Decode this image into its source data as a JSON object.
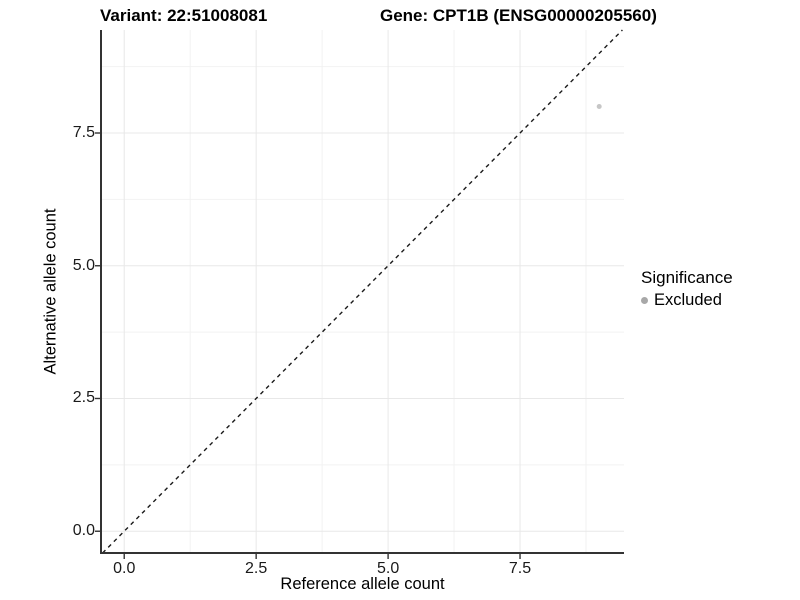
{
  "header": {
    "title_left": "Variant: 22:51008081",
    "title_right": "Gene: CPT1B (ENSG00000205560)"
  },
  "chart_data": {
    "type": "scatter",
    "title_left": "Variant: 22:51008081",
    "title_right": "Gene: CPT1B (ENSG00000205560)",
    "xlabel": "Reference allele count",
    "ylabel": "Alternative allele count",
    "xlim": [
      -0.44,
      9.47
    ],
    "ylim": [
      -0.41,
      9.44
    ],
    "x_ticks": [
      0.0,
      2.5,
      5.0,
      7.5
    ],
    "y_ticks": [
      0.0,
      2.5,
      5.0,
      7.5
    ],
    "x_tick_labels": [
      "0.0",
      "2.5",
      "5.0",
      "7.5"
    ],
    "y_tick_labels": [
      "0.0",
      "2.5",
      "5.0",
      "7.5"
    ],
    "x_minor_ticks": [
      1.25,
      3.75,
      6.25,
      8.75
    ],
    "y_minor_ticks": [
      1.25,
      3.75,
      6.25,
      8.75
    ],
    "grid": true,
    "reference_line": {
      "type": "abline",
      "slope": 1,
      "intercept": 0,
      "style": "dashed",
      "color": "#1a1a1a"
    },
    "series": [
      {
        "name": "Excluded",
        "color": "#c6c6c6",
        "point_radius": 2.5,
        "points": [
          {
            "x": 9,
            "y": 8
          }
        ]
      }
    ],
    "legend": {
      "title": "Significance",
      "position": "right",
      "entries": [
        {
          "label": "Excluded",
          "color": "#a8a8a8"
        }
      ]
    }
  },
  "colors": {
    "background": "#ffffff",
    "panel_background": "#ffffff",
    "axis_line": "#333333",
    "tick_mark": "#333333",
    "grid_major": "#e8e8e8",
    "grid_minor": "#f2f2f2",
    "tick_text": "#1a1a1a"
  }
}
